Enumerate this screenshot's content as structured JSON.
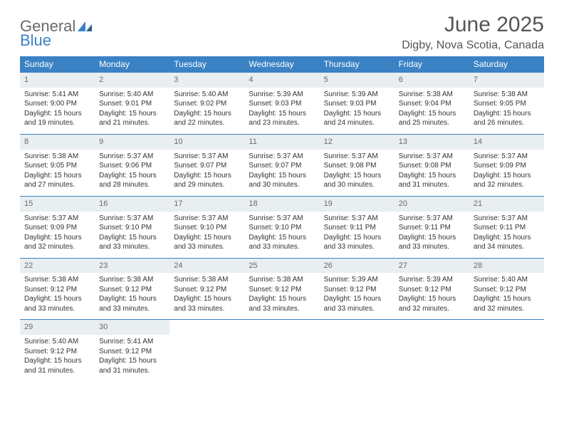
{
  "logo": {
    "word1": "General",
    "word2": "Blue"
  },
  "title": "June 2025",
  "location": "Digby, Nova Scotia, Canada",
  "colors": {
    "header_bg": "#3b82c4",
    "header_text": "#ffffff",
    "daynum_bg": "#e9eef1",
    "daynum_text": "#6a6a6a",
    "border": "#3b82c4",
    "body_text": "#333333",
    "logo_gray": "#6a6a6a",
    "logo_blue": "#3b82c4"
  },
  "weekdays": [
    "Sunday",
    "Monday",
    "Tuesday",
    "Wednesday",
    "Thursday",
    "Friday",
    "Saturday"
  ],
  "days": [
    {
      "n": 1,
      "sunrise": "5:41 AM",
      "sunset": "9:00 PM",
      "daylight": "15 hours and 19 minutes."
    },
    {
      "n": 2,
      "sunrise": "5:40 AM",
      "sunset": "9:01 PM",
      "daylight": "15 hours and 21 minutes."
    },
    {
      "n": 3,
      "sunrise": "5:40 AM",
      "sunset": "9:02 PM",
      "daylight": "15 hours and 22 minutes."
    },
    {
      "n": 4,
      "sunrise": "5:39 AM",
      "sunset": "9:03 PM",
      "daylight": "15 hours and 23 minutes."
    },
    {
      "n": 5,
      "sunrise": "5:39 AM",
      "sunset": "9:03 PM",
      "daylight": "15 hours and 24 minutes."
    },
    {
      "n": 6,
      "sunrise": "5:38 AM",
      "sunset": "9:04 PM",
      "daylight": "15 hours and 25 minutes."
    },
    {
      "n": 7,
      "sunrise": "5:38 AM",
      "sunset": "9:05 PM",
      "daylight": "15 hours and 26 minutes."
    },
    {
      "n": 8,
      "sunrise": "5:38 AM",
      "sunset": "9:05 PM",
      "daylight": "15 hours and 27 minutes."
    },
    {
      "n": 9,
      "sunrise": "5:37 AM",
      "sunset": "9:06 PM",
      "daylight": "15 hours and 28 minutes."
    },
    {
      "n": 10,
      "sunrise": "5:37 AM",
      "sunset": "9:07 PM",
      "daylight": "15 hours and 29 minutes."
    },
    {
      "n": 11,
      "sunrise": "5:37 AM",
      "sunset": "9:07 PM",
      "daylight": "15 hours and 30 minutes."
    },
    {
      "n": 12,
      "sunrise": "5:37 AM",
      "sunset": "9:08 PM",
      "daylight": "15 hours and 30 minutes."
    },
    {
      "n": 13,
      "sunrise": "5:37 AM",
      "sunset": "9:08 PM",
      "daylight": "15 hours and 31 minutes."
    },
    {
      "n": 14,
      "sunrise": "5:37 AM",
      "sunset": "9:09 PM",
      "daylight": "15 hours and 32 minutes."
    },
    {
      "n": 15,
      "sunrise": "5:37 AM",
      "sunset": "9:09 PM",
      "daylight": "15 hours and 32 minutes."
    },
    {
      "n": 16,
      "sunrise": "5:37 AM",
      "sunset": "9:10 PM",
      "daylight": "15 hours and 33 minutes."
    },
    {
      "n": 17,
      "sunrise": "5:37 AM",
      "sunset": "9:10 PM",
      "daylight": "15 hours and 33 minutes."
    },
    {
      "n": 18,
      "sunrise": "5:37 AM",
      "sunset": "9:10 PM",
      "daylight": "15 hours and 33 minutes."
    },
    {
      "n": 19,
      "sunrise": "5:37 AM",
      "sunset": "9:11 PM",
      "daylight": "15 hours and 33 minutes."
    },
    {
      "n": 20,
      "sunrise": "5:37 AM",
      "sunset": "9:11 PM",
      "daylight": "15 hours and 33 minutes."
    },
    {
      "n": 21,
      "sunrise": "5:37 AM",
      "sunset": "9:11 PM",
      "daylight": "15 hours and 34 minutes."
    },
    {
      "n": 22,
      "sunrise": "5:38 AM",
      "sunset": "9:12 PM",
      "daylight": "15 hours and 33 minutes."
    },
    {
      "n": 23,
      "sunrise": "5:38 AM",
      "sunset": "9:12 PM",
      "daylight": "15 hours and 33 minutes."
    },
    {
      "n": 24,
      "sunrise": "5:38 AM",
      "sunset": "9:12 PM",
      "daylight": "15 hours and 33 minutes."
    },
    {
      "n": 25,
      "sunrise": "5:38 AM",
      "sunset": "9:12 PM",
      "daylight": "15 hours and 33 minutes."
    },
    {
      "n": 26,
      "sunrise": "5:39 AM",
      "sunset": "9:12 PM",
      "daylight": "15 hours and 33 minutes."
    },
    {
      "n": 27,
      "sunrise": "5:39 AM",
      "sunset": "9:12 PM",
      "daylight": "15 hours and 32 minutes."
    },
    {
      "n": 28,
      "sunrise": "5:40 AM",
      "sunset": "9:12 PM",
      "daylight": "15 hours and 32 minutes."
    },
    {
      "n": 29,
      "sunrise": "5:40 AM",
      "sunset": "9:12 PM",
      "daylight": "15 hours and 31 minutes."
    },
    {
      "n": 30,
      "sunrise": "5:41 AM",
      "sunset": "9:12 PM",
      "daylight": "15 hours and 31 minutes."
    }
  ],
  "labels": {
    "sunrise": "Sunrise:",
    "sunset": "Sunset:",
    "daylight": "Daylight:"
  },
  "layout": {
    "first_weekday_index": 0,
    "rows": 5,
    "cols": 7
  }
}
